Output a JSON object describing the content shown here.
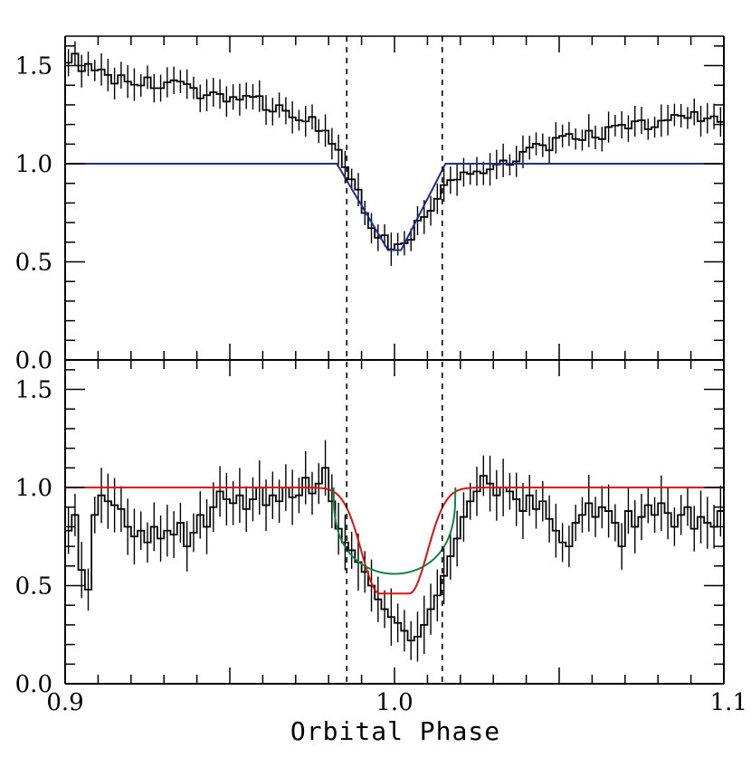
{
  "chart_data": {
    "type": "line",
    "xlabel": "Orbital Phase",
    "xlim": [
      0.9,
      1.1
    ],
    "x_tick_labels": [
      {
        "value": 0.9,
        "label": "0.9"
      },
      {
        "value": 1.0,
        "label": "1.0"
      },
      {
        "value": 1.1,
        "label": "1.1"
      }
    ],
    "vlines": [
      0.9855,
      1.0145
    ],
    "panels": [
      {
        "id": "top",
        "ylim": [
          0.0,
          1.65
        ],
        "y_tick_labels": [
          {
            "value": 0.0,
            "label": "0.0"
          },
          {
            "value": 0.5,
            "label": "0.5"
          },
          {
            "value": 1.0,
            "label": "1.0"
          },
          {
            "value": 1.5,
            "label": "1.5"
          }
        ],
        "bin_width": 0.002,
        "data_color": "#000000",
        "anchors_x": [
          0.9,
          0.91,
          0.93,
          0.96,
          0.975,
          0.982,
          0.986,
          0.99,
          0.995,
          1.0,
          1.005,
          1.01,
          1.015,
          1.02,
          1.03,
          1.04,
          1.05,
          1.07,
          1.08,
          1.09,
          1.1
        ],
        "anchors_y": [
          1.56,
          1.45,
          1.4,
          1.31,
          1.22,
          1.08,
          0.95,
          0.8,
          0.64,
          0.57,
          0.64,
          0.75,
          0.87,
          0.94,
          0.99,
          1.06,
          1.11,
          1.18,
          1.21,
          1.26,
          1.2
        ],
        "errors": 0.07,
        "models": [
          {
            "color": "#1f2e8f",
            "kind": "trapezoid",
            "depth": 0.44,
            "ingress_start": 0.9825,
            "ingress_end": 0.998,
            "egress_start": 1.002,
            "egress_end": 1.0155,
            "range": [
              0.9,
              1.1
            ]
          }
        ]
      },
      {
        "id": "bottom",
        "ylim": [
          0.0,
          1.65
        ],
        "y_tick_labels": [
          {
            "value": 0.0,
            "label": "0.0"
          },
          {
            "value": 0.5,
            "label": "0.5"
          },
          {
            "value": 1.0,
            "label": "1.0"
          },
          {
            "value": 1.5,
            "label": "1.5"
          }
        ],
        "bin_width": 0.002,
        "data_color": "#000000",
        "values": [
          0.78,
          0.86,
          0.58,
          0.48,
          0.86,
          0.96,
          0.93,
          0.91,
          0.89,
          0.8,
          0.75,
          0.78,
          0.72,
          0.8,
          0.74,
          0.78,
          0.76,
          0.82,
          0.7,
          0.77,
          0.86,
          0.8,
          0.9,
          0.98,
          0.94,
          0.92,
          0.96,
          0.89,
          0.94,
          1.0,
          0.91,
          0.96,
          0.93,
          1.0,
          0.95,
          0.96,
          1.05,
          0.97,
          1.02,
          1.1,
          0.93,
          0.79,
          0.72,
          0.68,
          0.62,
          0.57,
          0.5,
          0.43,
          0.38,
          0.34,
          0.31,
          0.27,
          0.22,
          0.24,
          0.3,
          0.38,
          0.45,
          0.55,
          0.65,
          0.74,
          0.85,
          0.93,
          0.98,
          1.06,
          1.02,
          0.96,
          1.0,
          0.98,
          0.94,
          0.88,
          0.96,
          0.89,
          0.93,
          0.84,
          0.78,
          0.72,
          0.7,
          0.82,
          0.86,
          0.92,
          0.85,
          0.9,
          0.88,
          0.82,
          0.7,
          0.88,
          0.8,
          0.85,
          0.91,
          0.86,
          0.92,
          0.87,
          0.8,
          0.86,
          0.9,
          0.79,
          0.85,
          0.82,
          0.8,
          0.88
        ],
        "errors": 0.12,
        "models": [
          {
            "color": "#e01010",
            "kind": "gauss",
            "depth": 0.54,
            "center": 1.0,
            "flat_halfwidth": 0.0045,
            "sigma": 0.0055,
            "range": [
              0.9,
              1.1
            ]
          },
          {
            "color": "#168045",
            "kind": "arc",
            "depth": 0.44,
            "start": 0.9815,
            "end": 1.0185
          }
        ]
      }
    ]
  }
}
